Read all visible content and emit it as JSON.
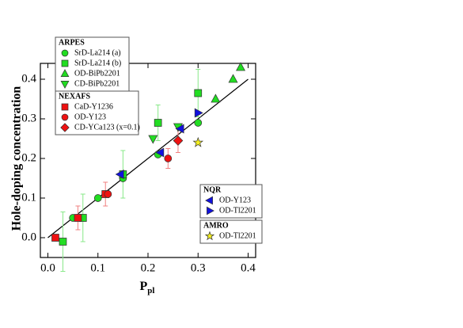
{
  "chart_data": {
    "type": "scatter",
    "xlabel": {
      "main": "P",
      "sub": "pl"
    },
    "ylabel": "Hole-doping concentration",
    "xlim": [
      -0.015,
      0.415
    ],
    "ylim": [
      -0.05,
      0.44
    ],
    "xticks": [
      {
        "value": 0,
        "label": "0.0"
      },
      {
        "value": 0.1,
        "label": "0.1"
      },
      {
        "value": 0.2,
        "label": "0.2"
      },
      {
        "value": 0.3,
        "label": "0.3"
      },
      {
        "value": 0.4,
        "label": "0.4"
      }
    ],
    "yticks": [
      {
        "value": 0,
        "label": "0.0"
      },
      {
        "value": 0.1,
        "label": "0.1"
      },
      {
        "value": 0.2,
        "label": "0.2"
      },
      {
        "value": 0.3,
        "label": "0.3"
      },
      {
        "value": 0.4,
        "label": "0.4"
      }
    ],
    "fit_line": {
      "x": [
        0,
        0.4
      ],
      "y": [
        0,
        0.4
      ],
      "color": "#000000"
    },
    "groups": [
      {
        "title": "ARPES",
        "series": [
          {
            "name": "SrD-La214 (a)",
            "marker": "circle",
            "color": "#22dd22",
            "x": [
              0.05,
              0.1,
              0.15,
              0.22,
              0.3
            ],
            "y": [
              0.05,
              0.1,
              0.15,
              0.21,
              0.29
            ]
          },
          {
            "name": "SrD-La214 (b)",
            "marker": "square",
            "color": "#22dd22",
            "err_color": "#88e888",
            "x": [
              0.03,
              0.07,
              0.15,
              0.22,
              0.3
            ],
            "y": [
              -0.01,
              0.05,
              0.16,
              0.29,
              0.365
            ],
            "err": [
              0.075,
              0.06,
              0.06,
              0.045,
              0.06
            ]
          },
          {
            "name": "OD-BiPb2201",
            "marker": "triangle-up",
            "color": "#22dd22",
            "x": [
              0.335,
              0.37,
              0.385
            ],
            "y": [
              0.35,
              0.4,
              0.43
            ]
          },
          {
            "name": "CD-BiPb2201",
            "marker": "triangle-down",
            "color": "#22dd22",
            "x": [
              0.21,
              0.26
            ],
            "y": [
              0.25,
              0.28
            ]
          }
        ]
      },
      {
        "title": "NEXAFS",
        "series": [
          {
            "name": "CaD-Y1236",
            "marker": "square",
            "color": "#ee1111",
            "err_color": "#f08080",
            "x": [
              0.015,
              0.06,
              0.115
            ],
            "y": [
              0.0,
              0.05,
              0.11
            ],
            "err": [
              0.0,
              0.03,
              0.03
            ]
          },
          {
            "name": "OD-Y123",
            "marker": "circle",
            "color": "#ee1111",
            "err_color": "#f08080",
            "x": [
              0.12,
              0.24
            ],
            "y": [
              0.11,
              0.2
            ],
            "err": [
              0.0,
              0.025
            ]
          },
          {
            "name": "CD-YCa123 (x=0.1)",
            "marker": "diamond",
            "color": "#ee1111",
            "err_color": "#f08080",
            "x": [
              0.26
            ],
            "y": [
              0.245
            ],
            "err": [
              0.03
            ]
          }
        ]
      },
      {
        "title": "NQR",
        "series": [
          {
            "name": "OD-Y123",
            "marker": "triangle-left",
            "color": "#1111dd",
            "x": [
              0.145,
              0.225,
              0.265
            ],
            "y": [
              0.16,
              0.215,
              0.275
            ]
          },
          {
            "name": "OD-Tl2201",
            "marker": "triangle-right",
            "color": "#1111dd",
            "x": [
              0.3
            ],
            "y": [
              0.315
            ]
          }
        ]
      },
      {
        "title": "AMRO",
        "series": [
          {
            "name": "OD-Tl2201",
            "marker": "star",
            "color": "#f5f020",
            "x": [
              0.3
            ],
            "y": [
              0.24
            ]
          }
        ]
      }
    ]
  }
}
